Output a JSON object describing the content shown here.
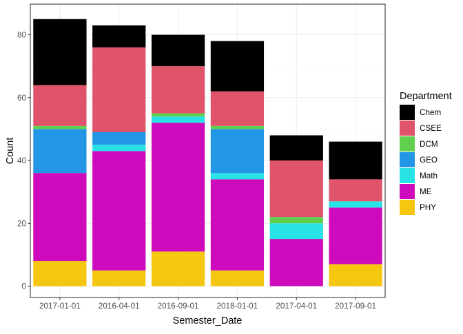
{
  "chart_data": {
    "type": "bar",
    "stacked": true,
    "title": "",
    "xlabel": "Semester_Date",
    "ylabel": "Count",
    "ylim": [
      0,
      88
    ],
    "yticks": [
      0,
      20,
      40,
      60,
      80
    ],
    "grid": true,
    "legend": {
      "title": "Department",
      "placement": "right"
    },
    "categories": [
      "2017-01-01",
      "2016-04-01",
      "2016-09-01",
      "2018-01-01",
      "2017-04-01",
      "2017-09-01"
    ],
    "series": [
      {
        "name": "PHY",
        "color": "#F5C710",
        "values": [
          8,
          5,
          11,
          5,
          0,
          7
        ]
      },
      {
        "name": "ME",
        "color": "#CD0BBC",
        "values": [
          28,
          38,
          41,
          29,
          15,
          18
        ]
      },
      {
        "name": "Math",
        "color": "#28E2E5",
        "values": [
          0,
          2,
          2,
          2,
          5,
          2
        ]
      },
      {
        "name": "GEO",
        "color": "#2297E6",
        "values": [
          14,
          4,
          0,
          14,
          0,
          0
        ]
      },
      {
        "name": "DCM",
        "color": "#61D04F",
        "values": [
          1,
          0,
          1,
          1,
          2,
          0
        ]
      },
      {
        "name": "CSEE",
        "color": "#DF536B",
        "values": [
          13,
          27,
          15,
          11,
          18,
          7
        ]
      },
      {
        "name": "Chem",
        "color": "#000000",
        "values": [
          21,
          7,
          10,
          16,
          8,
          12
        ]
      }
    ],
    "legend_order": [
      "Chem",
      "CSEE",
      "DCM",
      "GEO",
      "Math",
      "ME",
      "PHY"
    ]
  }
}
